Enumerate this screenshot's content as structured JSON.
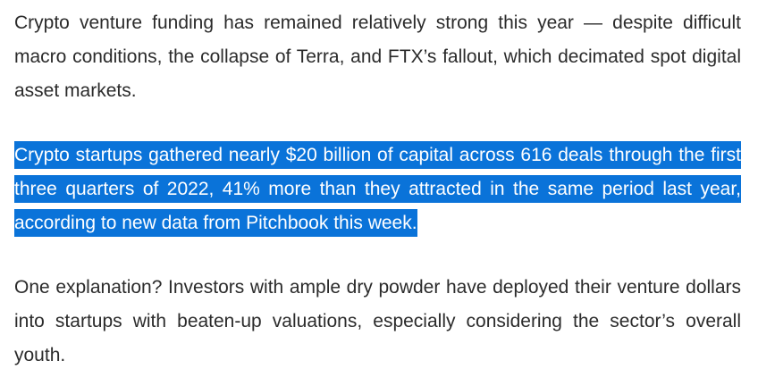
{
  "article": {
    "paragraphs": [
      "Crypto venture funding has remained relatively strong this year — despite difficult macro conditions, the collapse of Terra, and FTX’s fallout, which decimated spot digital asset markets.",
      "Crypto startups gathered nearly $20 billion of capital across 616 deals through the first three quarters of 2022, 41% more than they attracted in the same period last year, according to new data from Pitchbook this week.",
      "One explanation? Investors with ample dry powder have deployed their venture dollars into startups with beaten-up valuations, especially considering the sector’s overall youth."
    ],
    "selection_color": "#0a73d9"
  }
}
